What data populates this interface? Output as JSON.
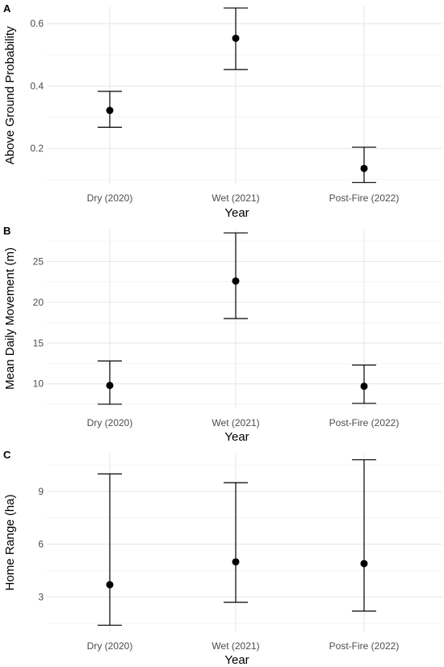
{
  "chart_data": [
    {
      "type": "scatter",
      "panel_label": "A",
      "categories": [
        "Dry (2020)",
        "Wet (2021)",
        "Post-Fire (2022)"
      ],
      "values": [
        0.322,
        0.553,
        0.136
      ],
      "lower": [
        0.268,
        0.453,
        0.091
      ],
      "upper": [
        0.383,
        0.65,
        0.204
      ],
      "xlabel": "Year",
      "ylabel": "Above Ground Probability",
      "yticks": [
        0.2,
        0.4,
        0.6
      ],
      "ylim": [
        0.085,
        0.655
      ],
      "grid": true
    },
    {
      "type": "scatter",
      "panel_label": "B",
      "categories": [
        "Dry (2020)",
        "Wet (2021)",
        "Post-Fire (2022)"
      ],
      "values": [
        9.8,
        22.6,
        9.7
      ],
      "lower": [
        7.5,
        18.0,
        7.6
      ],
      "upper": [
        12.8,
        28.5,
        12.3
      ],
      "xlabel": "Year",
      "ylabel": "Mean Daily Movement (m)",
      "yticks": [
        10,
        15,
        20,
        25
      ],
      "ylim": [
        7.0,
        29.0
      ],
      "grid": true
    },
    {
      "type": "scatter",
      "panel_label": "C",
      "categories": [
        "Dry (2020)",
        "Wet (2021)",
        "Post-Fire (2022)"
      ],
      "values": [
        3.7,
        5.0,
        4.9
      ],
      "lower": [
        1.4,
        2.7,
        2.2
      ],
      "upper": [
        10.0,
        9.5,
        10.8
      ],
      "xlabel": "Year",
      "ylabel": "Home Range (ha)",
      "yticks": [
        3,
        6,
        9
      ],
      "ylim": [
        1.0,
        11.2
      ],
      "grid": true
    }
  ]
}
